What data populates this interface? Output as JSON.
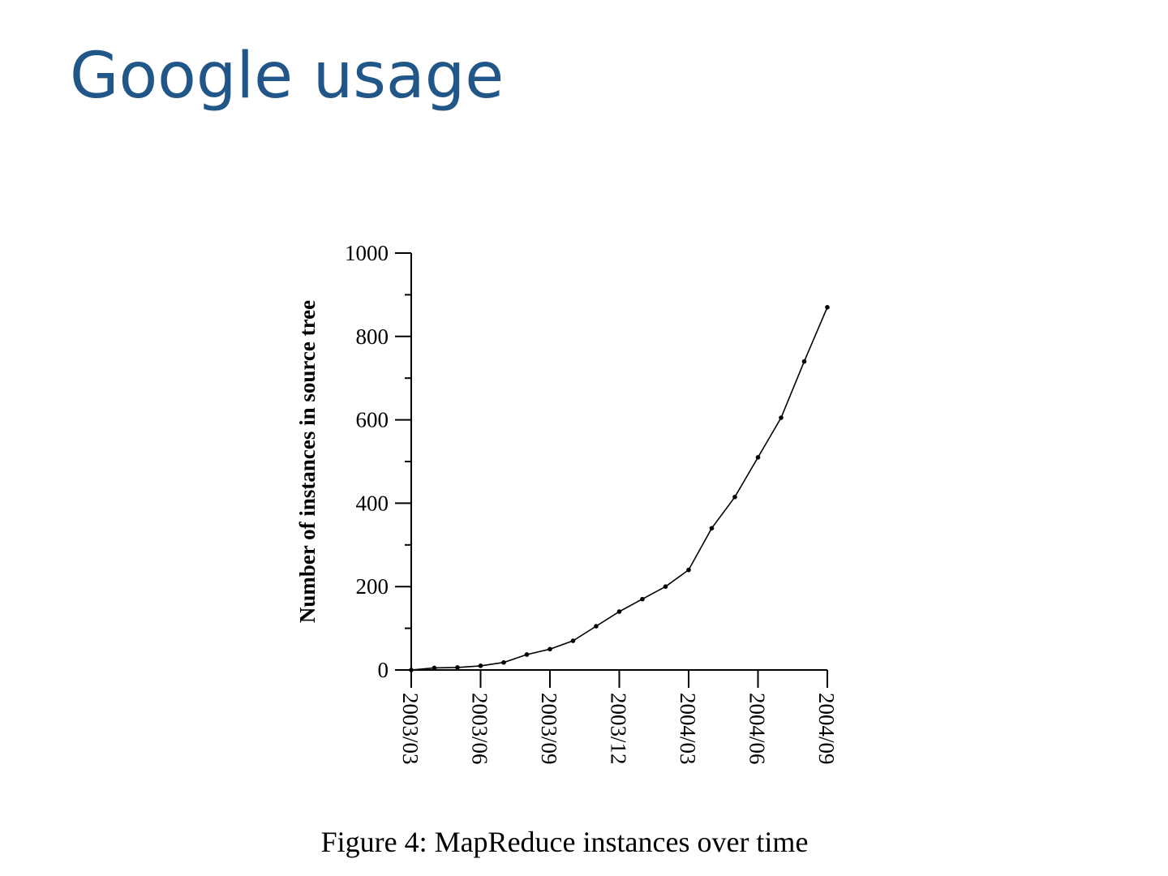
{
  "slide": {
    "title": "Google usage"
  },
  "chart_data": {
    "type": "line",
    "title": "",
    "xlabel": "",
    "ylabel": "Number of instances in source tree",
    "caption": "Figure 4: MapReduce instances over time",
    "x_ticks": [
      "2003/03",
      "2003/06",
      "2003/09",
      "2003/12",
      "2004/03",
      "2004/06",
      "2004/09"
    ],
    "x_range": [
      "2003/03",
      "2004/09"
    ],
    "ylim": [
      0,
      1000
    ],
    "y_ticks": [
      0,
      200,
      400,
      600,
      800,
      1000
    ],
    "y_minor_step": 100,
    "grid": false,
    "legend": "none",
    "series": [
      {
        "x": [
          "2003/03",
          "2003/04",
          "2003/05",
          "2003/06",
          "2003/07",
          "2003/08",
          "2003/09",
          "2003/10",
          "2003/11",
          "2003/12",
          "2004/01",
          "2004/02",
          "2004/03",
          "2004/04",
          "2004/05",
          "2004/06",
          "2004/07",
          "2004/08",
          "2004/09"
        ],
        "values": [
          0,
          5,
          6,
          10,
          18,
          37,
          50,
          70,
          105,
          140,
          170,
          200,
          240,
          340,
          415,
          510,
          605,
          740,
          870
        ]
      }
    ]
  }
}
